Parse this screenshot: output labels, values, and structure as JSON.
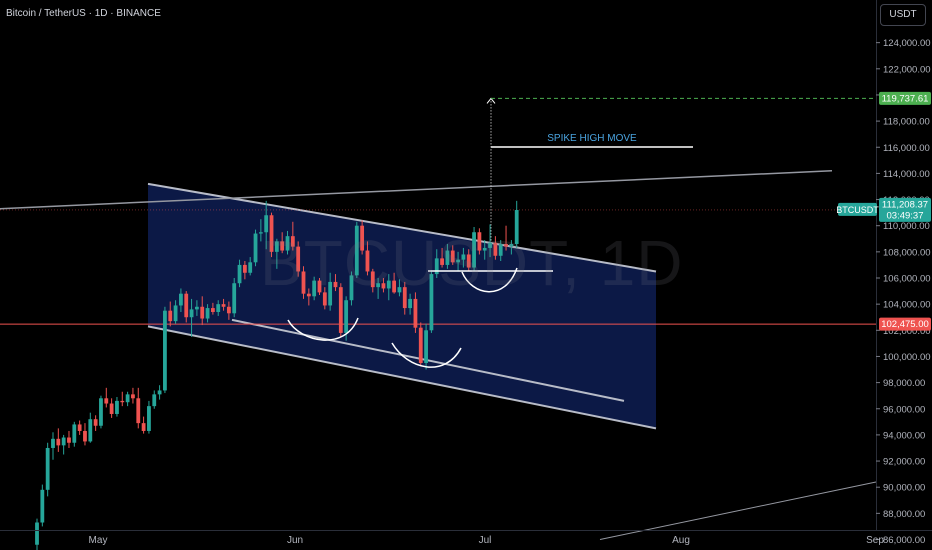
{
  "header": {
    "title": "Bitcoin / TetherUS · 1D · BINANCE",
    "watermark": "BTCUSDT, 1D",
    "currency_button": "USDT"
  },
  "annotations": {
    "spike_label": "SPIKE HIGH MOVE",
    "symbol_tag": "BTCUSDT",
    "last_price": "111,208.37",
    "countdown": "03:49:37",
    "target_price": "119,737.61",
    "support_price": "102,475.00"
  },
  "colors": {
    "up": "#26a69a",
    "down": "#ef5350",
    "channel_fill": "#0d1a4a",
    "target": "#4caf50",
    "support": "#ef5350",
    "spike_text": "#4aa3df"
  },
  "chart_data": {
    "type": "candlestick",
    "symbol": "Bitcoin / TetherUS",
    "interval": "1D",
    "exchange": "BINANCE",
    "x_ticks": [
      "May",
      "Jun",
      "Jul",
      "Aug",
      "Sep"
    ],
    "y_ticks": [
      86000,
      88000,
      90000,
      92000,
      94000,
      96000,
      98000,
      100000,
      102000,
      104000,
      106000,
      108000,
      110000,
      112000,
      114000,
      116000,
      118000,
      120000,
      122000,
      124000
    ],
    "y_tick_labels": [
      "86,000.00",
      "88,000.00",
      "90,000.00",
      "92,000.00",
      "94,000.00",
      "96,000.00",
      "98,000.00",
      "100,000.00",
      "102,000.00",
      "104,000.00",
      "106,000.00",
      "108,000.00",
      "110,000.00",
      "112,000.00",
      "114,000.00",
      "116,000.00",
      "118,000.00",
      "120,000.00",
      "122,000.00",
      "124,000.00"
    ],
    "ylim": [
      85600,
      125600
    ],
    "levels": {
      "target": 119737.61,
      "last": 111208.37,
      "support": 102475.0
    },
    "ohlc": [
      [
        85600,
        87600,
        85200,
        87300
      ],
      [
        87300,
        90200,
        87000,
        89800
      ],
      [
        89800,
        93400,
        89300,
        93000
      ],
      [
        93000,
        94200,
        92100,
        93700
      ],
      [
        93700,
        94500,
        92700,
        93200
      ],
      [
        93200,
        94000,
        92500,
        93800
      ],
      [
        93800,
        94300,
        93000,
        93400
      ],
      [
        93400,
        95000,
        93100,
        94800
      ],
      [
        94800,
        95100,
        94000,
        94300
      ],
      [
        94300,
        94900,
        93200,
        93500
      ],
      [
        93500,
        95700,
        93400,
        95200
      ],
      [
        95200,
        95500,
        94300,
        94700
      ],
      [
        94700,
        97000,
        94500,
        96800
      ],
      [
        96800,
        97600,
        96100,
        96400
      ],
      [
        96400,
        96800,
        95300,
        95600
      ],
      [
        95600,
        96900,
        95400,
        96600
      ],
      [
        96600,
        97300,
        96200,
        96500
      ],
      [
        96500,
        97300,
        96200,
        97100
      ],
      [
        97100,
        97600,
        96400,
        96800
      ],
      [
        96800,
        97600,
        94500,
        94900
      ],
      [
        94900,
        95400,
        94100,
        94300
      ],
      [
        94300,
        96600,
        94100,
        96200
      ],
      [
        96200,
        97400,
        96000,
        97100
      ],
      [
        97100,
        97800,
        96700,
        97400
      ],
      [
        97400,
        103800,
        97200,
        103500
      ],
      [
        103500,
        104200,
        102300,
        102700
      ],
      [
        102700,
        104300,
        102500,
        103900
      ],
      [
        103900,
        105200,
        103400,
        104800
      ],
      [
        104800,
        105000,
        102600,
        103000
      ],
      [
        103000,
        104400,
        101500,
        103600
      ],
      [
        103600,
        104300,
        103100,
        103800
      ],
      [
        103800,
        104600,
        102400,
        102900
      ],
      [
        102900,
        104000,
        102600,
        103700
      ],
      [
        103700,
        104100,
        103200,
        103400
      ],
      [
        103400,
        104300,
        103100,
        104000
      ],
      [
        104000,
        104400,
        103500,
        103800
      ],
      [
        103800,
        104200,
        102800,
        103300
      ],
      [
        103300,
        106000,
        103000,
        105600
      ],
      [
        105600,
        107400,
        105300,
        107000
      ],
      [
        107000,
        107300,
        105900,
        106400
      ],
      [
        106400,
        107600,
        106200,
        107200
      ],
      [
        107200,
        109700,
        106900,
        109400
      ],
      [
        109400,
        110500,
        108800,
        109500
      ],
      [
        109500,
        111900,
        108200,
        110800
      ],
      [
        110800,
        111000,
        107600,
        108000
      ],
      [
        108000,
        109000,
        106700,
        108800
      ],
      [
        108800,
        109500,
        107900,
        108100
      ],
      [
        108100,
        109600,
        107800,
        109200
      ],
      [
        109200,
        110300,
        108100,
        108400
      ],
      [
        108400,
        108800,
        106100,
        106500
      ],
      [
        106500,
        106900,
        104400,
        104800
      ],
      [
        104800,
        105200,
        103900,
        104600
      ],
      [
        104600,
        106100,
        104300,
        105800
      ],
      [
        105800,
        106000,
        104700,
        104900
      ],
      [
        104900,
        105300,
        103600,
        103900
      ],
      [
        103900,
        106400,
        103500,
        105700
      ],
      [
        105700,
        106300,
        105000,
        105300
      ],
      [
        105300,
        105600,
        101500,
        101800
      ],
      [
        101800,
        104600,
        101200,
        104300
      ],
      [
        104300,
        106500,
        103900,
        106200
      ],
      [
        106200,
        110300,
        106000,
        110000
      ],
      [
        110000,
        110400,
        107800,
        108100
      ],
      [
        108100,
        108800,
        106200,
        106500
      ],
      [
        106500,
        106700,
        104900,
        105300
      ],
      [
        105300,
        106000,
        104400,
        105600
      ],
      [
        105600,
        106000,
        104900,
        105200
      ],
      [
        105200,
        106300,
        104300,
        105800
      ],
      [
        105800,
        106400,
        104800,
        104900
      ],
      [
        104900,
        105900,
        104600,
        105300
      ],
      [
        105300,
        105700,
        103200,
        103700
      ],
      [
        103700,
        104800,
        103200,
        104400
      ],
      [
        104400,
        104900,
        101800,
        102200
      ],
      [
        102200,
        102600,
        99300,
        99500
      ],
      [
        99500,
        102500,
        99000,
        102000
      ],
      [
        102000,
        106600,
        101800,
        106300
      ],
      [
        106300,
        108200,
        106000,
        107500
      ],
      [
        107500,
        108300,
        106800,
        107000
      ],
      [
        107000,
        108600,
        106700,
        108100
      ],
      [
        108100,
        108500,
        107000,
        107200
      ],
      [
        107200,
        108000,
        106500,
        107400
      ],
      [
        107400,
        108300,
        106800,
        107800
      ],
      [
        107800,
        108200,
        106500,
        106800
      ],
      [
        106800,
        109900,
        106500,
        109500
      ],
      [
        109500,
        109800,
        107800,
        108100
      ],
      [
        108100,
        108900,
        107400,
        108300
      ],
      [
        108300,
        110100,
        107600,
        108700
      ],
      [
        108700,
        109200,
        107400,
        107700
      ],
      [
        107700,
        108900,
        107300,
        108600
      ],
      [
        108600,
        110000,
        108100,
        108400
      ],
      [
        108400,
        108900,
        107800,
        108600
      ],
      [
        108600,
        111900,
        108300,
        111200
      ]
    ],
    "drawings": {
      "channel_upper": [
        [
          148,
          113200
        ],
        [
          90,
          106500
        ]
      ],
      "channel_lower": [
        [
          148,
          102300
        ],
        [
          90,
          94500
        ]
      ],
      "inner_line": [
        [
          232,
          102800
        ],
        [
          90,
          96600
        ]
      ],
      "long_trend_top": [
        [
          0,
          111300
        ],
        [
          832,
          114200
        ]
      ],
      "long_trend_bottom": [
        [
          600,
          86000
        ],
        [
          932,
          90500
        ]
      ]
    }
  }
}
